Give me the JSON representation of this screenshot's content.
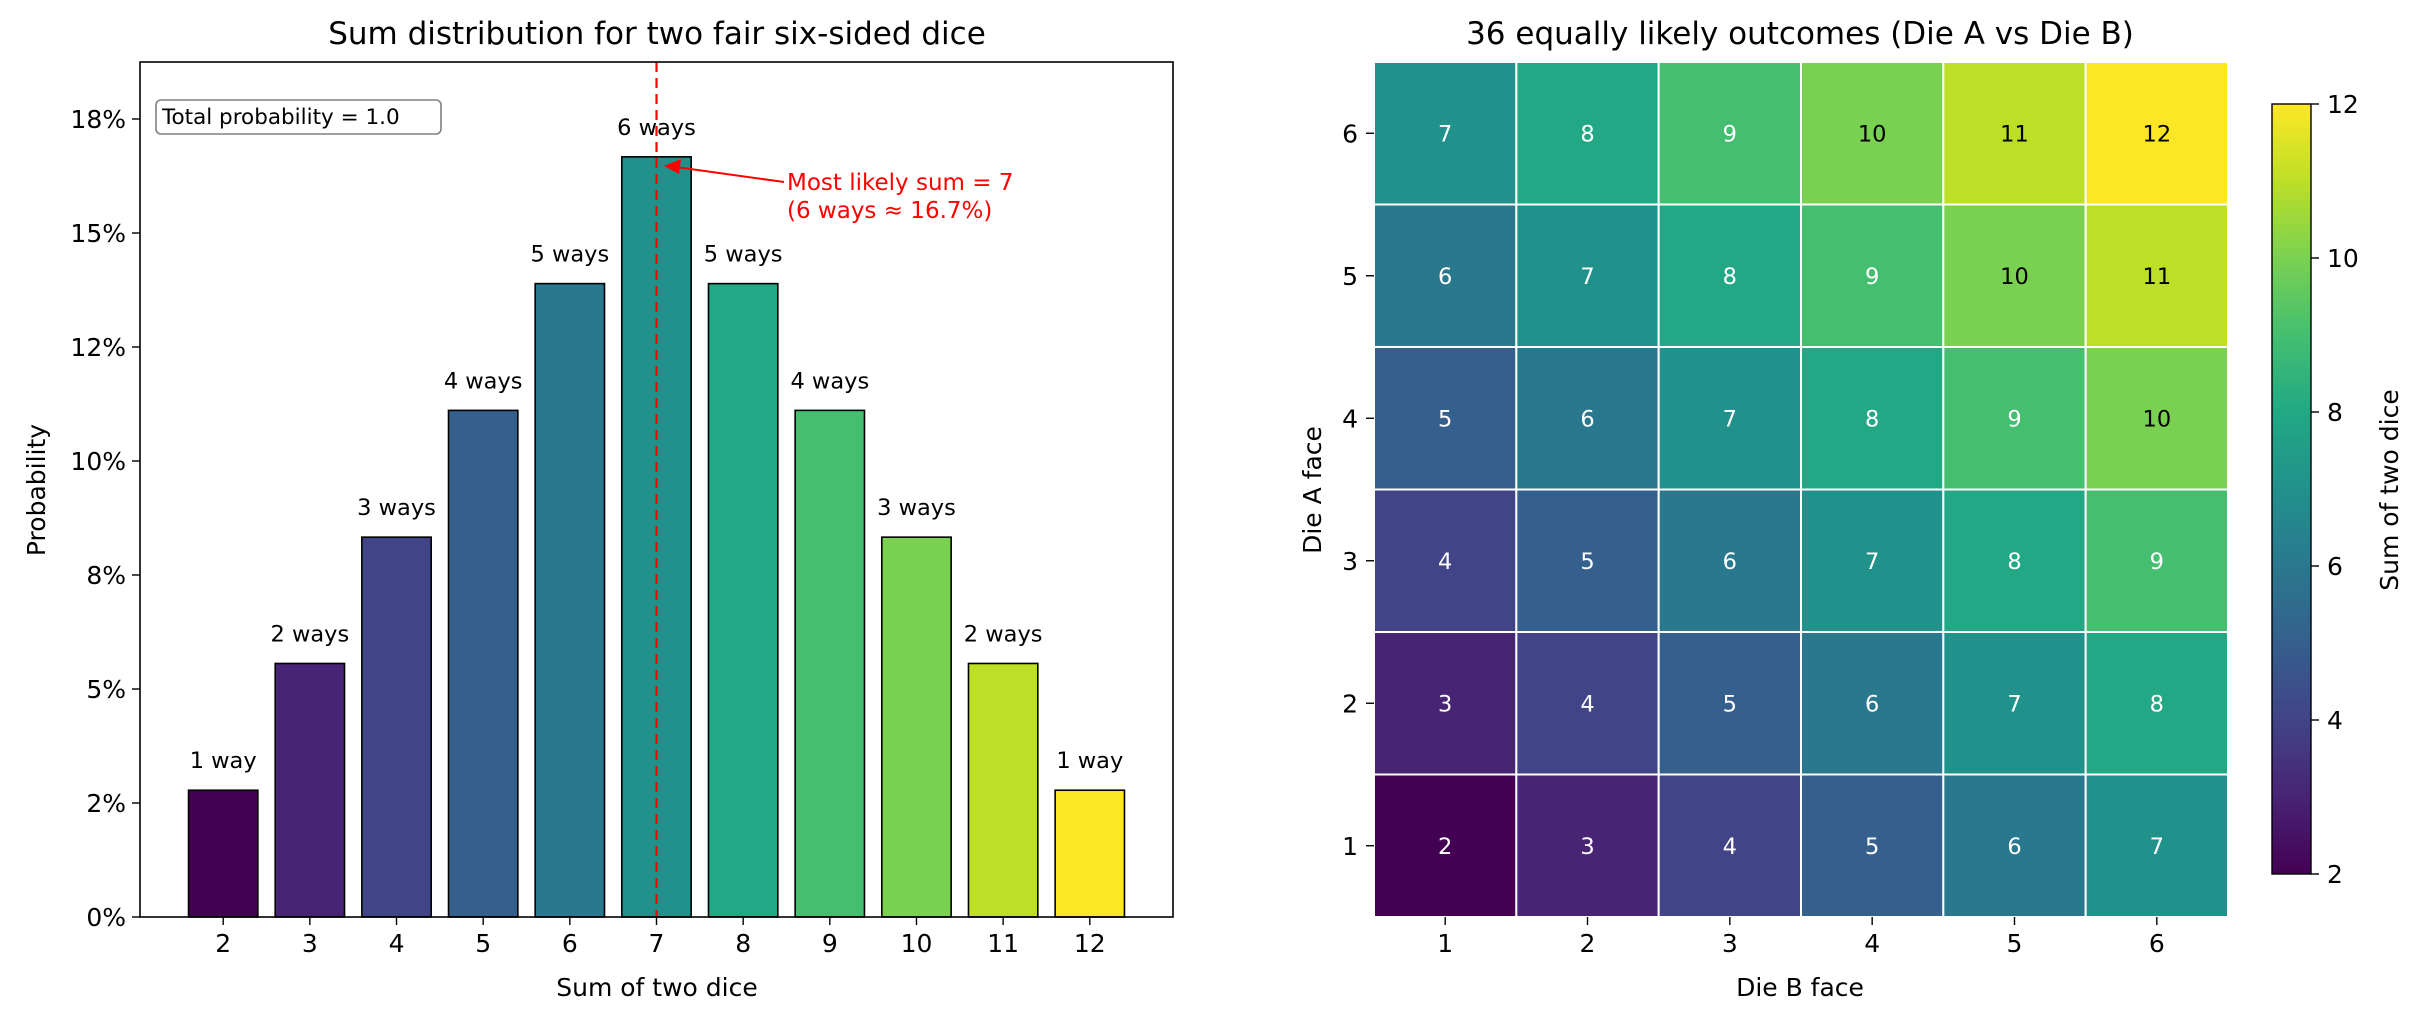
{
  "chart_data": [
    {
      "type": "bar",
      "title": "Sum distribution for two fair six-sided dice",
      "xlabel": "Sum of two dice",
      "ylabel": "Probability",
      "categories": [
        "2",
        "3",
        "4",
        "5",
        "6",
        "7",
        "8",
        "9",
        "10",
        "11",
        "12"
      ],
      "values": [
        0.0278,
        0.0556,
        0.0833,
        0.1111,
        0.1389,
        0.1667,
        0.1389,
        0.1111,
        0.0833,
        0.0556,
        0.0278
      ],
      "bar_labels": [
        "1 way",
        "2 ways",
        "3 ways",
        "4 ways",
        "5 ways",
        "6 ways",
        "5 ways",
        "4 ways",
        "3 ways",
        "2 ways",
        "1 way"
      ],
      "bar_colors": [
        "#440154",
        "#482475",
        "#414487",
        "#355f8d",
        "#2a788e",
        "#21918c",
        "#22a884",
        "#44bf70",
        "#7ad151",
        "#bddf26",
        "#fde725"
      ],
      "ylim": [
        0,
        0.1875
      ],
      "yticks": [
        {
          "value": 0,
          "label": "0%"
        },
        {
          "value": 0.025,
          "label": "2%"
        },
        {
          "value": 0.05,
          "label": "5%"
        },
        {
          "value": 0.075,
          "label": "8%"
        },
        {
          "value": 0.1,
          "label": "10%"
        },
        {
          "value": 0.125,
          "label": "12%"
        },
        {
          "value": 0.15,
          "label": "15%"
        },
        {
          "value": 0.175,
          "label": "18%"
        }
      ],
      "reference_line": {
        "x": "7",
        "color": "#ff0000",
        "style": "dashed"
      },
      "annotation": {
        "lines": [
          "Most likely sum = 7",
          "(6 ways ≈ 16.7%)"
        ],
        "target_category": "7",
        "color": "#ff0000"
      },
      "textbox": "Total probability = 1.0",
      "legend": "none",
      "grid": false
    },
    {
      "type": "heatmap",
      "title": "36 equally likely outcomes (Die A vs Die B)",
      "xlabel": "Die B face",
      "ylabel": "Die A face",
      "x": [
        "1",
        "2",
        "3",
        "4",
        "5",
        "6"
      ],
      "y": [
        "1",
        "2",
        "3",
        "4",
        "5",
        "6"
      ],
      "values": [
        [
          2,
          3,
          4,
          5,
          6,
          7
        ],
        [
          3,
          4,
          5,
          6,
          7,
          8
        ],
        [
          4,
          5,
          6,
          7,
          8,
          9
        ],
        [
          5,
          6,
          7,
          8,
          9,
          10
        ],
        [
          6,
          7,
          8,
          9,
          10,
          11
        ],
        [
          7,
          8,
          9,
          10,
          11,
          12
        ]
      ],
      "colorbar": {
        "label": "Sum of two dice",
        "range": [
          2,
          12
        ],
        "ticks": [
          "2",
          "4",
          "6",
          "8",
          "10",
          "12"
        ],
        "colormap": [
          "#440154",
          "#482475",
          "#414487",
          "#355f8d",
          "#2a788e",
          "#21918c",
          "#22a884",
          "#44bf70",
          "#7ad151",
          "#bddf26",
          "#fde725"
        ]
      }
    }
  ]
}
